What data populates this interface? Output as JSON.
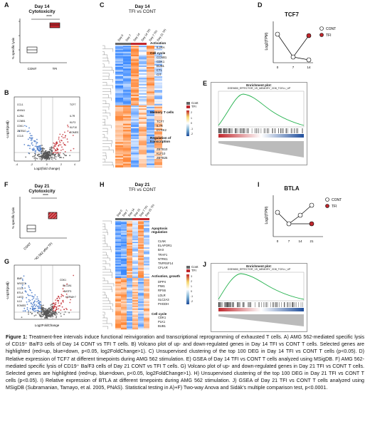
{
  "panels": {
    "A": {
      "letter": "A",
      "title1": "Day 14",
      "title2": "Cytotoxicity",
      "ylabel": "% specific lysis",
      "sig": "****",
      "x": [
        "CONT",
        "TFI"
      ],
      "colors": [
        "#ffffff",
        "#c0272d"
      ]
    },
    "B": {
      "letter": "B",
      "ylabel": "-Log10(padj)",
      "xlabel": "Log2(fold change)",
      "xticks": [
        "-4",
        "-2",
        "0",
        "2",
        "4"
      ],
      "genes_left": [
        "CCL1",
        "ANXA1",
        "IL2RA",
        "CCNB1",
        "CDK1",
        "ZBTB10",
        "CCL5"
      ],
      "genes_right": [
        "TCF7",
        "IL7R",
        "KLF3",
        "KLF10",
        "EOMES"
      ]
    },
    "C": {
      "letter": "C",
      "title1": "Day 14",
      "title2": "TFI vs CONT",
      "cols": [
        "Day 0",
        "Day 7",
        "Day 14",
        "Day 14 TFI",
        "Day 7 TFI",
        "Day 21 TFI"
      ],
      "groups": [
        {
          "title": "Activation",
          "genes": [
            "IL2RA"
          ]
        },
        {
          "title": "Cell cycle",
          "genes": [
            "CCNB1",
            "CDK1",
            "BUB1",
            "CTL",
            "CIT"
          ]
        },
        {
          "title": "Memory T cells",
          "genes": [
            "TCF7",
            "IL7R",
            "DYRK2"
          ]
        },
        {
          "title": "Regulation of transcription",
          "genes": [
            "ZBTB10",
            "KLF10",
            "ZBTB25"
          ]
        }
      ],
      "legend": [
        "Cont",
        "TFI"
      ],
      "scale": [
        "2",
        "1",
        "0",
        "-1",
        "-2"
      ]
    },
    "D": {
      "letter": "D",
      "title": "TCF7",
      "ylabel": "Log2(TPM)",
      "x": [
        "0",
        "7",
        "14"
      ],
      "legend": [
        "CONT",
        "TFI"
      ]
    },
    "E": {
      "letter": "E",
      "plot_title": "Enrichment plot:",
      "set": "GSE9650_EFFECTOR_VS_MEMORY_CD8_TCELL_UP"
    },
    "F": {
      "letter": "F",
      "title1": "Day 21",
      "title2": "Cytotoxicity",
      "ylabel": "% specific lysis",
      "sig": "****",
      "x": [
        "CONT",
        "AMG 562 after TFI"
      ]
    },
    "G": {
      "letter": "G",
      "ylabel": "-Log10(padj)",
      "xlabel": "Log2FoldChange",
      "genes_left": [
        "BMF",
        "NFATC1",
        "CCL5",
        "BTLA",
        "LAG3",
        "IL10",
        "EOMES"
      ],
      "genes_right": [
        "CDK1",
        "SLC2A1",
        "BATF3",
        "HSPA8+7"
      ]
    },
    "H": {
      "letter": "H",
      "title1": "Day 21",
      "title2": "TFI vs CONT",
      "cols": [
        "Day 0",
        "Day 7",
        "Day 14",
        "Day 21",
        "Day 7 TFI",
        "Day 21 TFI"
      ],
      "groups": [
        {
          "title": "Apoptosis regulation",
          "genes": [
            "CLNK",
            "ELAPOR1",
            "BAX",
            "TRAF1",
            "NTRK1",
            "TNFRSF14",
            "CFLAR"
          ]
        },
        {
          "title": "Activation, growth",
          "genes": [
            "DPP4",
            "PIM1",
            "RPS6",
            "LDLR",
            "SLC2A3",
            "PHGDH"
          ]
        },
        {
          "title": "Cell cycle",
          "genes": [
            "CDK1",
            "PLK1",
            "BUB1"
          ]
        }
      ],
      "legend": [
        "Cont",
        "TFI"
      ],
      "scale": [
        "3",
        "2",
        "1",
        "0",
        "-1",
        "-2"
      ]
    },
    "I": {
      "letter": "I",
      "title": "BTLA",
      "ylabel": "Log2(TPM)",
      "x": [
        "0",
        "7",
        "14",
        "21"
      ],
      "legend": [
        "CONT",
        "TFI"
      ]
    },
    "J": {
      "letter": "J",
      "plot_title": "Enrichment plot:",
      "set": "GSE9650_EFFECTOR_VS_MEMORY_CD8_TCELL_UP"
    }
  },
  "caption": {
    "label": "Figure 1:",
    "text": "Treatment-free intervals induce functional reinvigoration and transcriptional reprogramming of exhausted T cells. A) AMG 562-mediated specific lysis of CD19⁺ Ba/F3 cells of Day 14 CONT vs TFI T cells. B) Volcano plot of up- and down-regulated genes in Day 14 TFI vs CONT T cells. Selected genes are highlighted (red=up, blue=down, p<0.05, log2FoldChange>1). C) Unsupervised clustering of the top 100 DEG in Day 14 TFI vs CONT T cells (p<0.05). D) Relative expression of TCF7 at different timepoints during AMG 562 stimulation. E) GSEA of Day 14 TFI vs CONT T cells analyzed using MSigDB. F) AMG 562-mediated specific lysis of CD19⁺ Ba/F3 cells of Day 21 CONT vs TFI T cells. G) Volcano plot of up- and down-regulated genes in Day 21 TFI vs CONT T cells. Selected genes are highlighted (red=up, blue=down, p<0.05, log2FoldChange>1). H) Unsupervised clustering of the top 100 DEG in Day 21 TFI vs CONT T cells (p<0.05). I) Relative expression of BTLA at different timepoints during AMG 562 stimulation. J) GSEA of Day 21 TFI vs CONT T cells analyzed using MSigDB (Subramanian, Tamayo, et al. 2005, PNAS). Statistical testing in A)+F) Two-way Anova and Sidák’s multiple comparison test, p<0.0001."
  }
}
